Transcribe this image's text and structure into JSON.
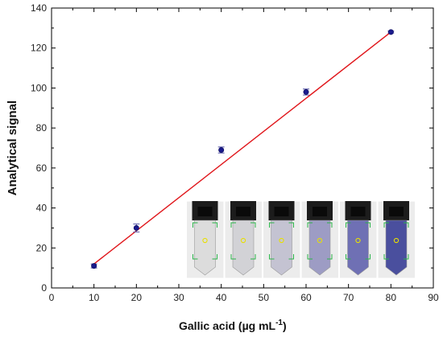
{
  "chart_data": {
    "type": "scatter",
    "xlabel": "Gallic acid (µg mL",
    "xlabel_sup": "-1",
    "xlabel_close": ")",
    "ylabel": "Analytical signal",
    "xlim": [
      0,
      90
    ],
    "ylim": [
      0,
      140
    ],
    "xticks": [
      "0",
      "10",
      "20",
      "30",
      "40",
      "50",
      "60",
      "70",
      "80",
      "90"
    ],
    "yticks": [
      "0",
      "20",
      "40",
      "60",
      "80",
      "100",
      "120",
      "140"
    ],
    "grid": false,
    "legend": "none",
    "series": [
      {
        "marker": "circle",
        "x": [
          10,
          20,
          40,
          60,
          80
        ],
        "y": [
          11,
          30,
          69,
          98,
          128
        ],
        "yerr": [
          1,
          2,
          1.5,
          1.5,
          0.5
        ]
      }
    ],
    "fit_line": {
      "x": [
        10,
        80
      ],
      "y": [
        12,
        128
      ]
    },
    "inset": {
      "description_tubes": 6,
      "tube_colors": [
        "#dcdcdc",
        "#d2d2d6",
        "#c4c3d2",
        "#9d9cc4",
        "#6f70b4",
        "#4a4f9e"
      ]
    },
    "colors": {
      "marker": "#1a1a8c",
      "error_bar": "#5a5aa8",
      "fit_line": "#e0151a",
      "axis": "#000000"
    }
  }
}
